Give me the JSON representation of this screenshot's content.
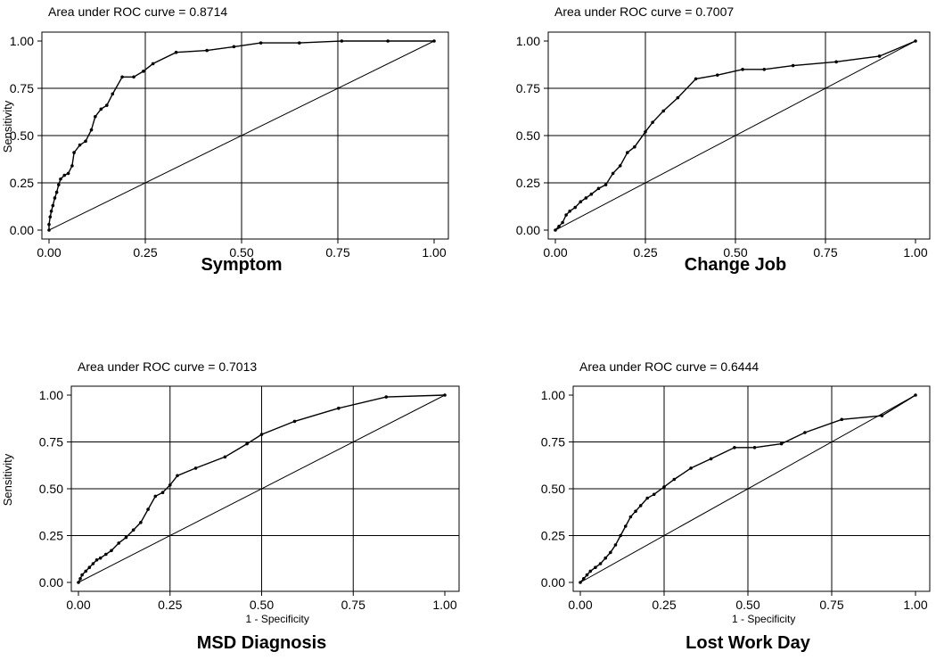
{
  "chart_data": [
    {
      "type": "line",
      "title": "Symptom",
      "annotation": "Area under ROC curve = 0.8714",
      "ylabel": "Sensitivity",
      "xlabel": "",
      "xlim": [
        0,
        1
      ],
      "ylim": [
        0,
        1
      ],
      "xticks": [
        "0.00",
        "0.25",
        "0.50",
        "0.75",
        "1.00"
      ],
      "yticks": [
        "0.00",
        "0.25",
        "0.50",
        "0.75",
        "1.00"
      ],
      "grid": true,
      "reference_line": [
        [
          0,
          0
        ],
        [
          1,
          1
        ]
      ],
      "series": [
        {
          "x": [
            0,
            0,
            0.003,
            0.006,
            0.01,
            0.015,
            0.02,
            0.025,
            0.03,
            0.04,
            0.05,
            0.06,
            0.065,
            0.08,
            0.095,
            0.11,
            0.12,
            0.135,
            0.15,
            0.165,
            0.19,
            0.22,
            0.245,
            0.27,
            0.33,
            0.41,
            0.48,
            0.55,
            0.65,
            0.76,
            0.88,
            1.0
          ],
          "y": [
            0,
            0.03,
            0.07,
            0.1,
            0.13,
            0.17,
            0.2,
            0.24,
            0.27,
            0.29,
            0.3,
            0.34,
            0.41,
            0.45,
            0.47,
            0.53,
            0.6,
            0.64,
            0.66,
            0.72,
            0.81,
            0.81,
            0.84,
            0.88,
            0.94,
            0.95,
            0.97,
            0.99,
            0.99,
            1.0,
            1.0,
            1.0
          ]
        }
      ]
    },
    {
      "type": "line",
      "title": "Change Job",
      "annotation": "Area under ROC curve = 0.7007",
      "ylabel": "",
      "xlabel": "",
      "xlim": [
        0,
        1
      ],
      "ylim": [
        0,
        1
      ],
      "xticks": [
        "0.00",
        "0.25",
        "0.50",
        "0.75",
        "1.00"
      ],
      "yticks": [
        "0.00",
        "0.25",
        "0.50",
        "0.75",
        "1.00"
      ],
      "grid": true,
      "reference_line": [
        [
          0,
          0
        ],
        [
          1,
          1
        ]
      ],
      "series": [
        {
          "x": [
            0,
            0.01,
            0.02,
            0.03,
            0.04,
            0.055,
            0.07,
            0.085,
            0.1,
            0.12,
            0.14,
            0.16,
            0.18,
            0.2,
            0.22,
            0.25,
            0.27,
            0.3,
            0.34,
            0.39,
            0.45,
            0.52,
            0.58,
            0.66,
            0.78,
            0.9,
            1.0
          ],
          "y": [
            0,
            0.02,
            0.04,
            0.08,
            0.1,
            0.12,
            0.15,
            0.17,
            0.19,
            0.22,
            0.24,
            0.3,
            0.34,
            0.41,
            0.44,
            0.52,
            0.57,
            0.63,
            0.7,
            0.8,
            0.82,
            0.85,
            0.85,
            0.87,
            0.89,
            0.92,
            1.0
          ]
        }
      ]
    },
    {
      "type": "line",
      "title": "MSD Diagnosis",
      "annotation": "Area under ROC curve = 0.7013",
      "ylabel": "Sensitivity",
      "xlabel": "1 - Specificity",
      "xlim": [
        0,
        1
      ],
      "ylim": [
        0,
        1
      ],
      "xticks": [
        "0.00",
        "0.25",
        "0.50",
        "0.75",
        "1.00"
      ],
      "yticks": [
        "0.00",
        "0.25",
        "0.50",
        "0.75",
        "1.00"
      ],
      "grid": true,
      "reference_line": [
        [
          0,
          0
        ],
        [
          1,
          1
        ]
      ],
      "series": [
        {
          "x": [
            0,
            0.005,
            0.01,
            0.02,
            0.03,
            0.04,
            0.05,
            0.06,
            0.075,
            0.09,
            0.11,
            0.13,
            0.15,
            0.17,
            0.19,
            0.21,
            0.23,
            0.25,
            0.27,
            0.32,
            0.4,
            0.46,
            0.5,
            0.59,
            0.71,
            0.84,
            1.0
          ],
          "y": [
            0,
            0.02,
            0.04,
            0.06,
            0.08,
            0.1,
            0.12,
            0.13,
            0.15,
            0.17,
            0.21,
            0.24,
            0.28,
            0.32,
            0.39,
            0.46,
            0.48,
            0.52,
            0.57,
            0.61,
            0.67,
            0.74,
            0.79,
            0.86,
            0.93,
            0.99,
            1.0
          ]
        }
      ]
    },
    {
      "type": "line",
      "title": "Lost Work Day",
      "annotation": "Area under ROC curve = 0.6444",
      "ylabel": "",
      "xlabel": "1 - Specificity",
      "xlim": [
        0,
        1
      ],
      "ylim": [
        0,
        1
      ],
      "xticks": [
        "0.00",
        "0.25",
        "0.50",
        "0.75",
        "1.00"
      ],
      "yticks": [
        "0.00",
        "0.25",
        "0.50",
        "0.75",
        "1.00"
      ],
      "grid": true,
      "reference_line": [
        [
          0,
          0
        ],
        [
          1,
          1
        ]
      ],
      "series": [
        {
          "x": [
            0,
            0.01,
            0.02,
            0.03,
            0.045,
            0.06,
            0.075,
            0.09,
            0.105,
            0.12,
            0.135,
            0.15,
            0.165,
            0.18,
            0.2,
            0.22,
            0.25,
            0.28,
            0.33,
            0.39,
            0.46,
            0.52,
            0.6,
            0.67,
            0.78,
            0.9,
            1.0
          ],
          "y": [
            0,
            0.02,
            0.04,
            0.06,
            0.08,
            0.1,
            0.13,
            0.16,
            0.2,
            0.25,
            0.3,
            0.35,
            0.38,
            0.41,
            0.45,
            0.47,
            0.51,
            0.55,
            0.61,
            0.66,
            0.72,
            0.72,
            0.74,
            0.8,
            0.87,
            0.89,
            1.0
          ]
        }
      ]
    }
  ]
}
